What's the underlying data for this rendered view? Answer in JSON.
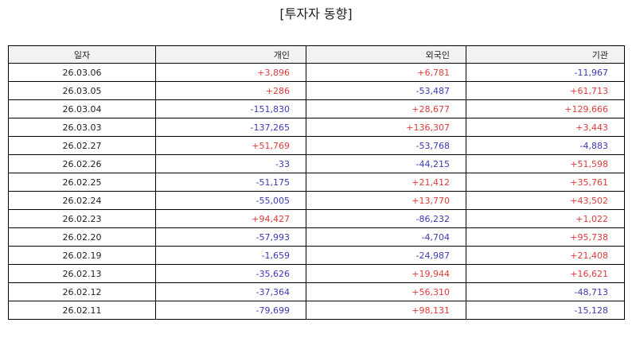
{
  "title": "[투자자 동향]",
  "colors": {
    "positive": "#e03a3a",
    "negative": "#3a3ab8",
    "header_bg": "#f2f2f2",
    "border": "#000000"
  },
  "table": {
    "columns": [
      "일자",
      "개인",
      "외국인",
      "기관"
    ],
    "rows": [
      [
        "26.03.06",
        "+3,896",
        "+6,781",
        "-11,967"
      ],
      [
        "26.03.05",
        "+286",
        "-53,487",
        "+61,713"
      ],
      [
        "26.03.04",
        "-151,830",
        "+28,677",
        "+129,666"
      ],
      [
        "26.03.03",
        "-137,265",
        "+136,307",
        "+3,443"
      ],
      [
        "26.02.27",
        "+51,769",
        "-53,768",
        "-4,883"
      ],
      [
        "26.02.26",
        "-33",
        "-44,215",
        "+51,598"
      ],
      [
        "26.02.25",
        "-51,175",
        "+21,412",
        "+35,761"
      ],
      [
        "26.02.24",
        "-55,005",
        "+13,770",
        "+43,502"
      ],
      [
        "26.02.23",
        "+94,427",
        "-86,232",
        "+1,022"
      ],
      [
        "26.02.20",
        "-57,993",
        "-4,704",
        "+95,738"
      ],
      [
        "26.02.19",
        "-1,659",
        "-24,987",
        "+21,408"
      ],
      [
        "26.02.13",
        "-35,626",
        "+19,944",
        "+16,621"
      ],
      [
        "26.02.12",
        "-37,364",
        "+56,310",
        "-48,713"
      ],
      [
        "26.02.11",
        "-79,699",
        "+98,131",
        "-15,128"
      ]
    ]
  }
}
